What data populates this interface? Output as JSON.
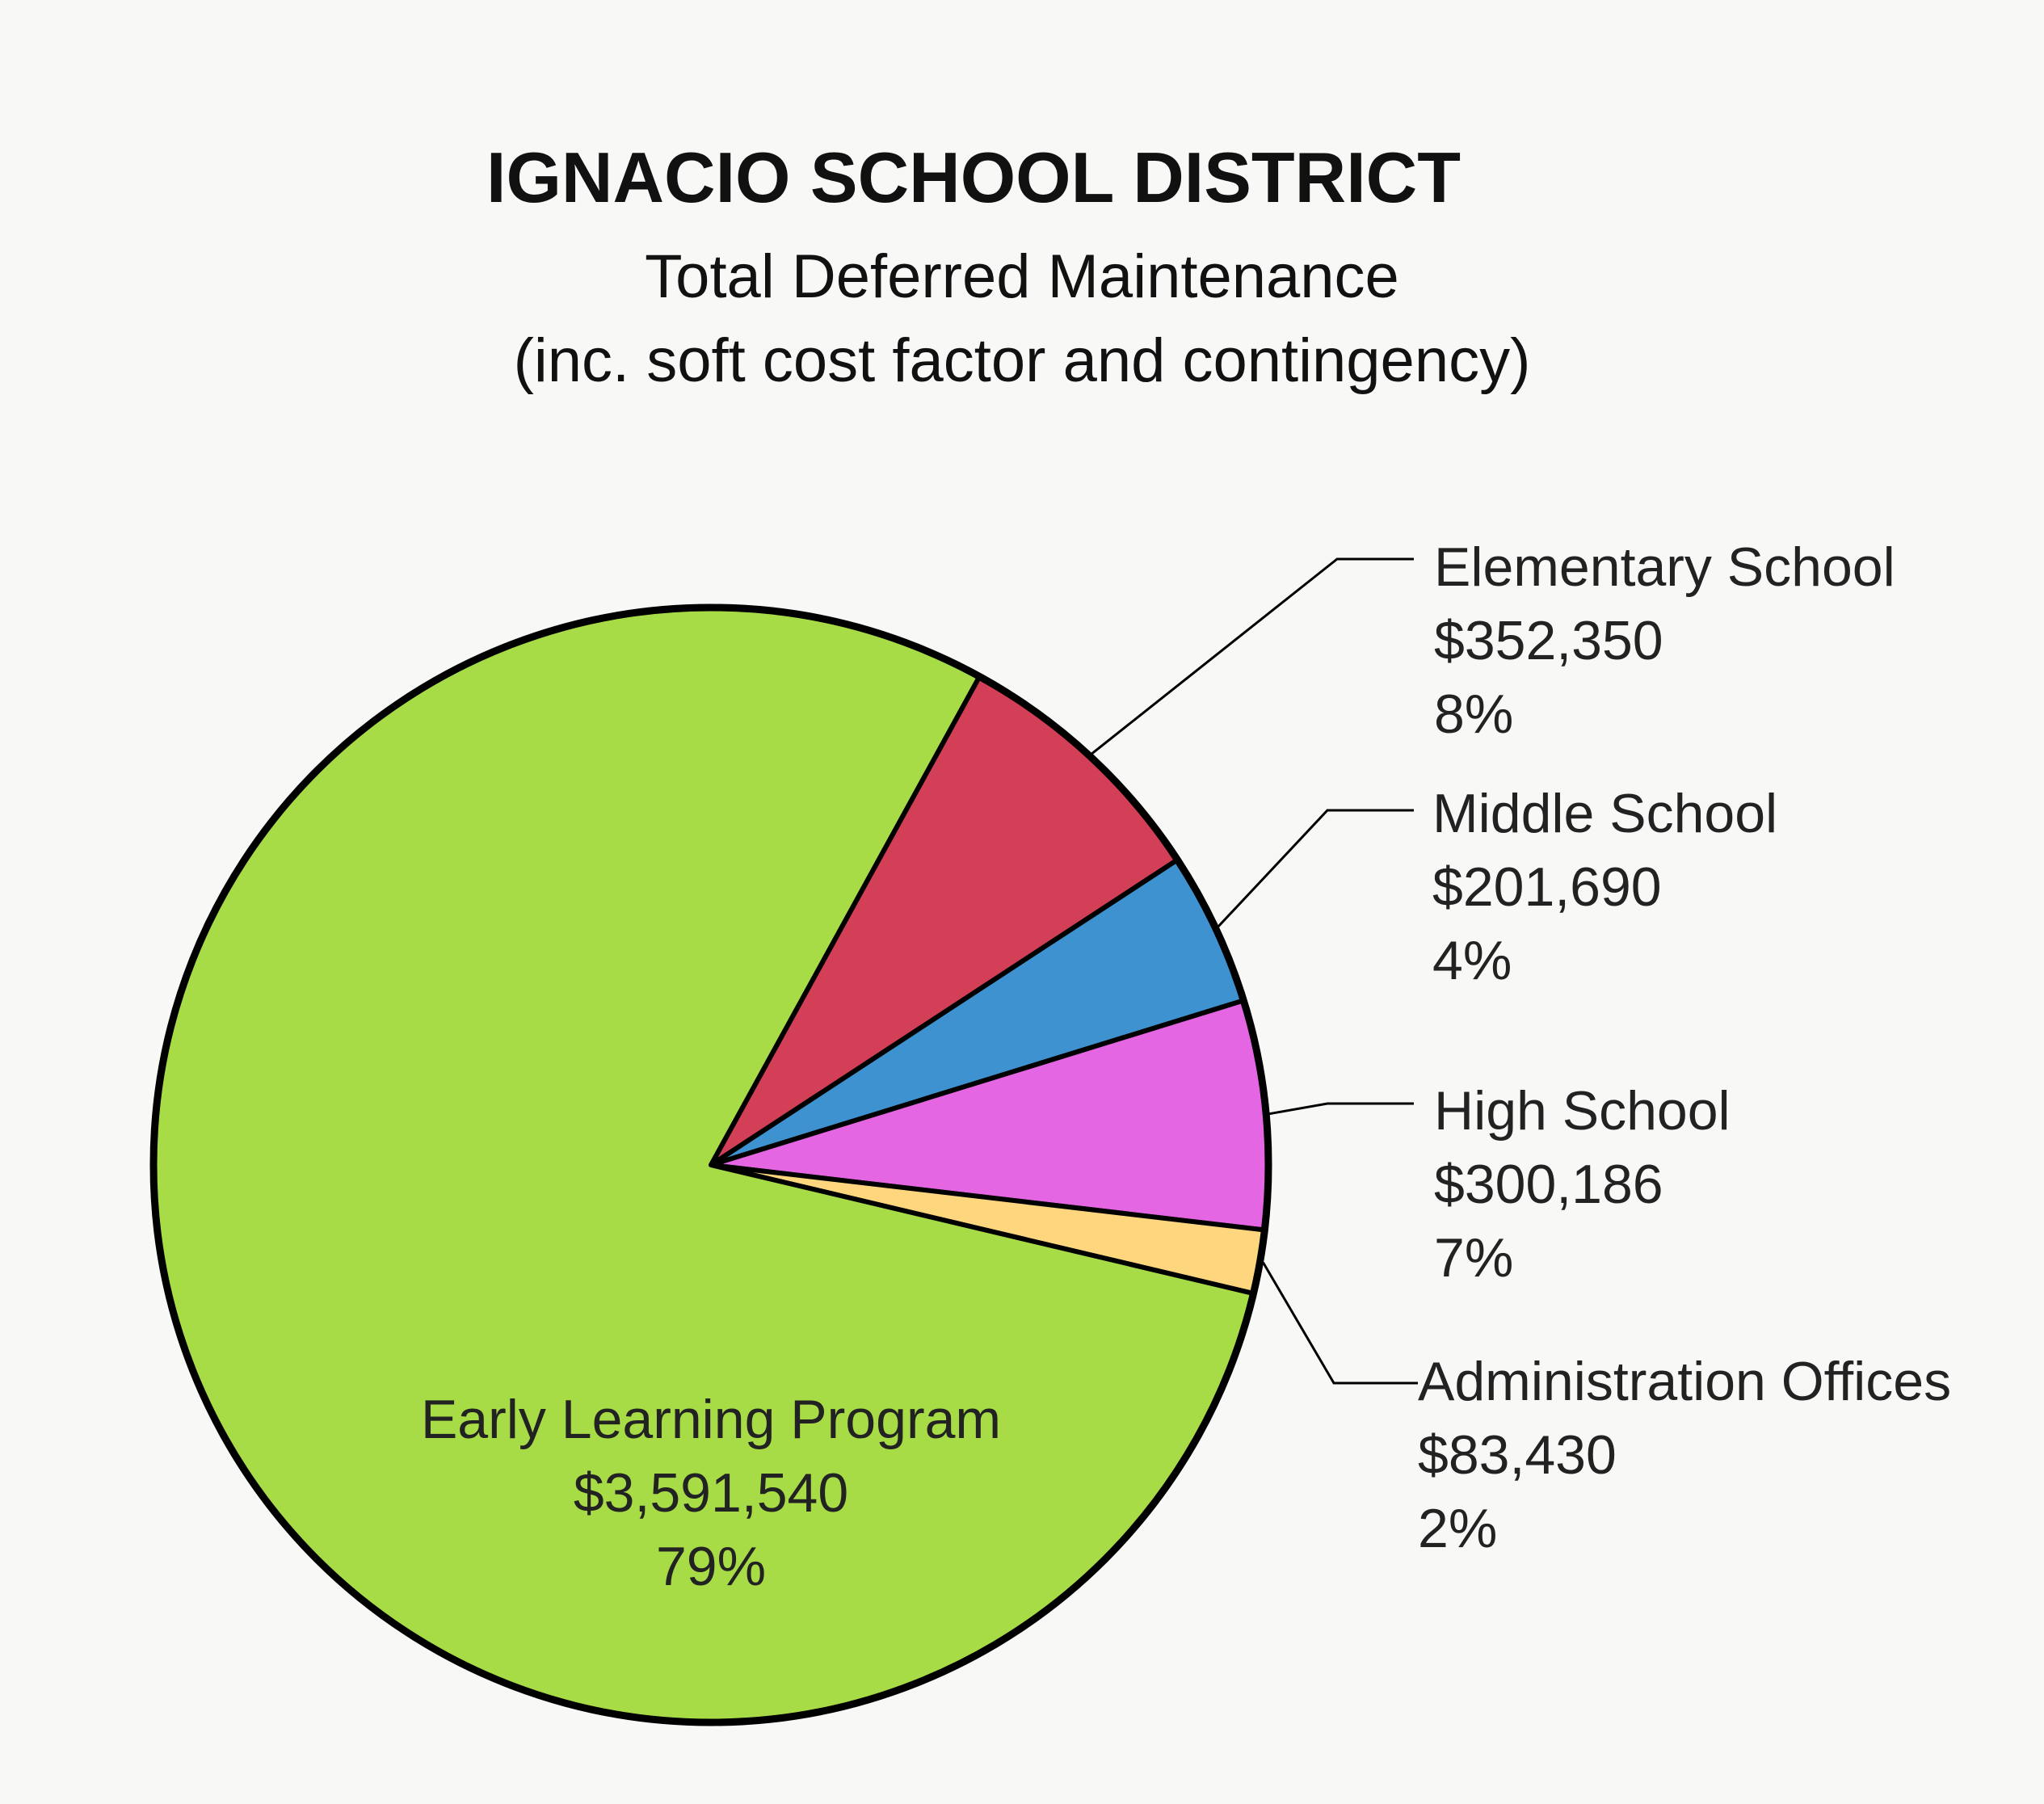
{
  "chart_data": {
    "type": "pie",
    "title": "IGNACIO SCHOOL DISTRICT",
    "subtitle_lines": [
      "Total Deferred Maintenance",
      "(inc. soft cost factor and contingency)"
    ],
    "slices": [
      {
        "label": "Early Learning Program",
        "value": 3591540,
        "value_label": "$3,591,540",
        "percent_label": "79%",
        "color": "#a8dc47"
      },
      {
        "label": "Elementary School",
        "value": 352350,
        "value_label": "$352,350",
        "percent_label": "8%",
        "color": "#d23f57"
      },
      {
        "label": "Middle School",
        "value": 201690,
        "value_label": "$201,690",
        "percent_label": "4%",
        "color": "#3d92cf"
      },
      {
        "label": "High School",
        "value": 300186,
        "value_label": "$300,186",
        "percent_label": "7%",
        "color": "#e466e2"
      },
      {
        "label": "Administration Offices",
        "value": 83430,
        "value_label": "$83,430",
        "percent_label": "2%",
        "color": "#fdd67e"
      }
    ],
    "legend": "none",
    "labels": "callouts"
  }
}
